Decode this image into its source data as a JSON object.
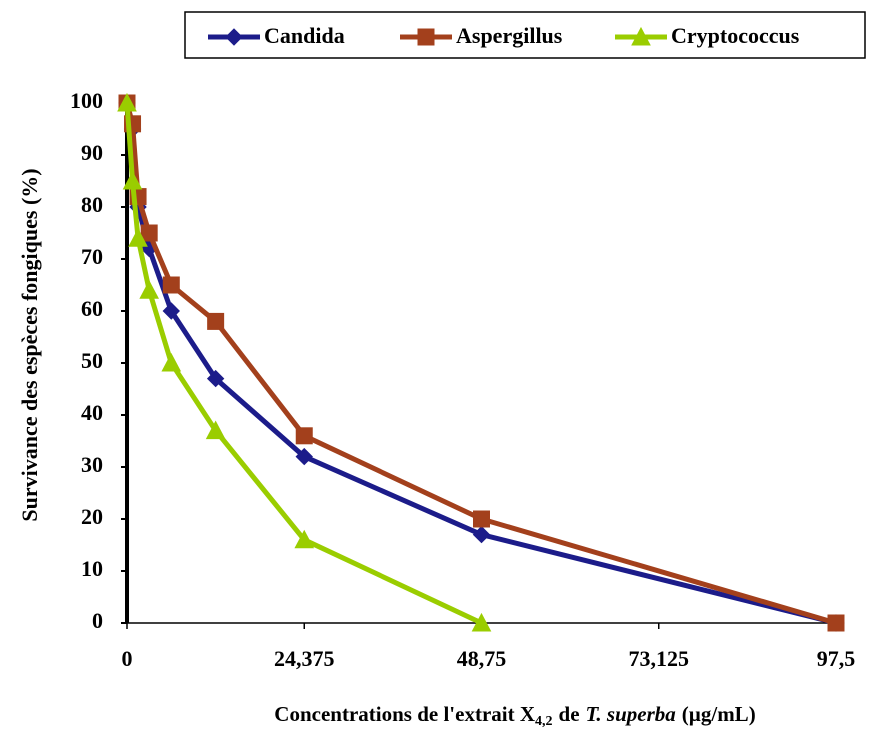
{
  "chart_data": {
    "type": "line",
    "x_label": [
      "Concentrations de l'extrait X",
      "4,2",
      "de",
      "T. superba",
      "(µg/mL)"
    ],
    "y_label": "Survivance des espèces fongiques (%)",
    "x": [
      0,
      0.76,
      1.52,
      3.05,
      6.09,
      12.19,
      24.375,
      48.75,
      97.5
    ],
    "series": [
      {
        "name": "Candida",
        "color": "#1c1c8a",
        "marker": "diamond",
        "values": [
          100,
          95,
          80,
          72,
          60,
          47,
          32,
          17,
          0
        ]
      },
      {
        "name": "Aspergillus",
        "color": "#a3401c",
        "marker": "square",
        "values": [
          100,
          96,
          82,
          75,
          65,
          58,
          36,
          20,
          0
        ]
      },
      {
        "name": "Cryptococcus",
        "color": "#9acd00",
        "marker": "triangle",
        "values": [
          100,
          85,
          74,
          64,
          50,
          37,
          16,
          0,
          null
        ]
      }
    ],
    "xlim": [
      0,
      97.5
    ],
    "xticks": [
      0,
      {
        "value": 24.375,
        "label": "24,375"
      },
      {
        "value": 48.75,
        "label": "48,75"
      },
      {
        "value": 73.125,
        "label": "73,125"
      },
      {
        "value": 97.5,
        "label": "97,5"
      }
    ],
    "ylim": [
      0,
      100
    ],
    "yticks": [
      0,
      10,
      20,
      30,
      40,
      50,
      60,
      70,
      80,
      90,
      100
    ],
    "legend": "top"
  }
}
